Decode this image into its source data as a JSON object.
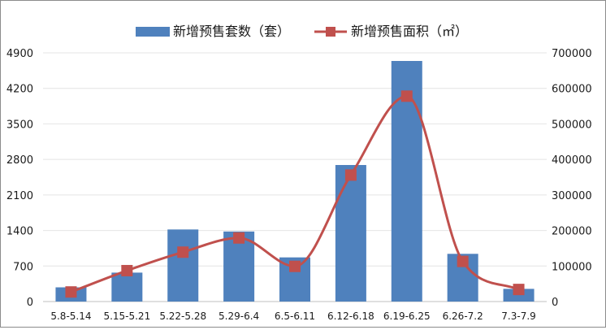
{
  "chart_data": {
    "type": "bar+line",
    "categories": [
      "5.8-5.14",
      "5.15-5.21",
      "5.22-5.28",
      "5.29-6.4",
      "6.5-6.11",
      "6.12-6.18",
      "6.19-6.25",
      "6.26-7.2",
      "7.3-7.9"
    ],
    "series": [
      {
        "name": "新增预售套数（套）",
        "type": "bar",
        "axis": "left",
        "color": "#4f81bd",
        "values": [
          280,
          570,
          1420,
          1380,
          870,
          2690,
          4740,
          940,
          250
        ]
      },
      {
        "name": "新增预售面积（㎡）",
        "type": "line",
        "axis": "right",
        "color": "#c0504d",
        "marker": "square",
        "smooth": true,
        "values": [
          27000,
          87000,
          139000,
          179000,
          99000,
          356000,
          578000,
          113000,
          34000
        ]
      }
    ],
    "y_left": {
      "ticks": [
        "0",
        "700",
        "1400",
        "2100",
        "2800",
        "3500",
        "4200",
        "4900"
      ],
      "ylim": [
        0,
        4900
      ]
    },
    "y_right": {
      "ticks": [
        "0",
        "100000",
        "200000",
        "300000",
        "400000",
        "500000",
        "600000",
        "700000"
      ],
      "ylim": [
        0,
        700000
      ]
    },
    "grid": true,
    "legend": "top-center"
  }
}
